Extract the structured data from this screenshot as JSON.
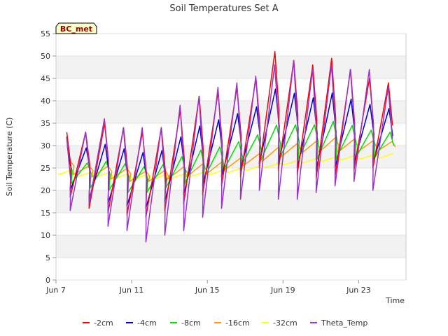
{
  "chart_data": {
    "type": "line",
    "title": "Soil Temperatures Set A",
    "xlabel": "Time",
    "ylabel": "Soil Temperature (C)",
    "badge": "BC_met",
    "ylim": [
      0,
      55
    ],
    "yticks": [
      0,
      5,
      10,
      15,
      20,
      25,
      30,
      35,
      40,
      45,
      50,
      55
    ],
    "xlim_days": [
      7,
      25.5
    ],
    "xticks": [
      {
        "day": 7,
        "label": "Jun 7"
      },
      {
        "day": 11,
        "label": "Jun 11"
      },
      {
        "day": 15,
        "label": "Jun 15"
      },
      {
        "day": 19,
        "label": "Jun 19"
      },
      {
        "day": 23,
        "label": "Jun 23"
      }
    ],
    "x_days": [
      7.5,
      8.5,
      9.5,
      10.5,
      11.5,
      12.5,
      13.5,
      14.5,
      15.5,
      16.5,
      17.5,
      18.5,
      19.5,
      20.5,
      21.5,
      22.5,
      23.5,
      24.5
    ],
    "series": [
      {
        "name": "-2cm",
        "color": "#ff0000",
        "min": [
          18,
          18.5,
          16,
          15,
          14.5,
          14,
          15.5,
          17,
          19,
          21,
          23,
          25,
          24.5,
          23.5,
          22.5,
          23,
          24.5,
          25
        ],
        "max": [
          33,
          33,
          35,
          34,
          33,
          34,
          38,
          41,
          42,
          43,
          45,
          51,
          49,
          48,
          49.5,
          47,
          45,
          44
        ]
      },
      {
        "name": "-4cm",
        "color": "#0000cc",
        "min": [
          20,
          20,
          18,
          17,
          16.5,
          16,
          17.5,
          19,
          21,
          23,
          24.5,
          26,
          26,
          25,
          24.5,
          25,
          26,
          26
        ]
      },
      {
        "name": "-8cm",
        "color": "#00dd00",
        "min": [
          22,
          21.5,
          20.5,
          20,
          19.5,
          19.5,
          20.5,
          21.5,
          22.5,
          24,
          25.5,
          26.5,
          27,
          27,
          27,
          27,
          27,
          27
        ]
      },
      {
        "name": "-16cm",
        "color": "#ff9900",
        "min": [
          24.5,
          23.5,
          23,
          22.5,
          22,
          22,
          22.5,
          23,
          23.5,
          24.5,
          25.5,
          26.5,
          27.5,
          28,
          28.5,
          28.5,
          28.5,
          28.5
        ]
      },
      {
        "name": "-32cm",
        "color": "#ffff00",
        "mean": [
          24,
          23.5,
          23.5,
          23.2,
          23,
          23,
          23.2,
          23.6,
          24,
          24.5,
          25,
          25.6,
          26.2,
          26.7,
          27,
          27.3,
          27.5,
          27.7
        ]
      },
      {
        "name": "Theta_Temp",
        "color": "#9933cc",
        "min": [
          12,
          15.5,
          17,
          12,
          11,
          8.5,
          10,
          11,
          14,
          16,
          18,
          20,
          18,
          18,
          19.5,
          21,
          22,
          20
        ],
        "max": [
          32,
          33,
          36,
          34,
          34,
          34,
          39,
          41,
          43,
          44,
          45.5,
          48,
          49,
          47,
          48,
          47,
          47,
          43
        ]
      }
    ],
    "legend_placement": "bottom",
    "grid": true
  }
}
